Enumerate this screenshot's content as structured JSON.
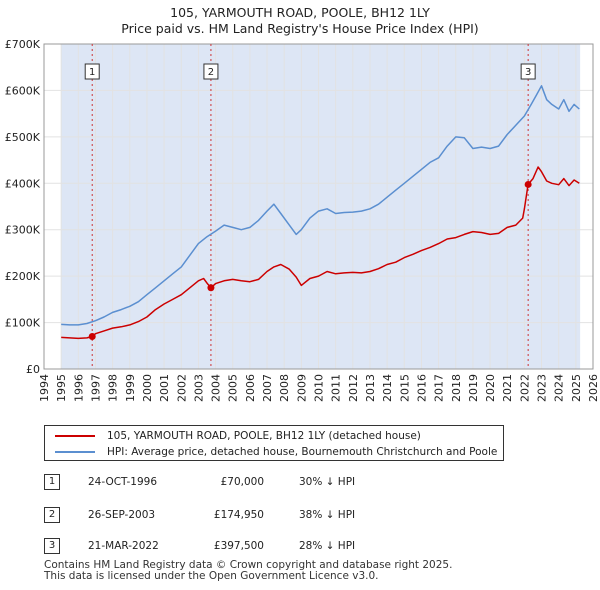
{
  "title_line1": "105, YARMOUTH ROAD, POOLE, BH12 1LY",
  "title_line2": "Price paid vs. HM Land Registry's House Price Index (HPI)",
  "chart_data": {
    "type": "line",
    "title": "105, YARMOUTH ROAD, POOLE, BH12 1LY — Price paid vs. HM Land Registry's House Price Index (HPI)",
    "xlim": [
      1994,
      2026
    ],
    "ylim": [
      0,
      700000
    ],
    "y_ticks": [
      0,
      100000,
      200000,
      300000,
      400000,
      500000,
      600000,
      700000
    ],
    "y_tick_labels": [
      "£0",
      "£100K",
      "£200K",
      "£300K",
      "£400K",
      "£500K",
      "£600K",
      "£700K"
    ],
    "x_ticks": [
      1994,
      1995,
      1996,
      1997,
      1998,
      1999,
      2000,
      2001,
      2002,
      2003,
      2004,
      2005,
      2006,
      2007,
      2008,
      2009,
      2010,
      2011,
      2012,
      2013,
      2014,
      2015,
      2016,
      2017,
      2018,
      2019,
      2020,
      2021,
      2022,
      2023,
      2024,
      2025,
      2026
    ],
    "data_range": [
      1995.0,
      2025.25
    ],
    "colors": {
      "price": "#cc0000",
      "hpi": "#5b8fd0",
      "shade": "#dde6f5",
      "grid": "#e2e2e2",
      "marker_line": "#cc3333"
    },
    "series": [
      {
        "name": "105, YARMOUTH ROAD, POOLE, BH12 1LY (detached house)",
        "color": "#cc0000",
        "x": [
          1995.0,
          1995.5,
          1996.0,
          1996.5,
          1996.81,
          1997.0,
          1997.5,
          1998.0,
          1998.5,
          1999.0,
          1999.5,
          2000.0,
          2000.5,
          2001.0,
          2001.5,
          2002.0,
          2002.5,
          2003.0,
          2003.3,
          2003.5,
          2003.73,
          2004.0,
          2004.5,
          2005.0,
          2005.5,
          2006.0,
          2006.5,
          2007.0,
          2007.4,
          2007.8,
          2008.3,
          2008.7,
          2009.0,
          2009.5,
          2010.0,
          2010.5,
          2011.0,
          2011.5,
          2012.0,
          2012.5,
          2013.0,
          2013.5,
          2014.0,
          2014.5,
          2015.0,
          2015.5,
          2016.0,
          2016.5,
          2017.0,
          2017.5,
          2018.0,
          2018.5,
          2019.0,
          2019.5,
          2020.0,
          2020.5,
          2021.0,
          2021.5,
          2021.9,
          2022.0,
          2022.22,
          2022.5,
          2022.8,
          2023.0,
          2023.3,
          2023.6,
          2024.0,
          2024.3,
          2024.6,
          2024.9,
          2025.2
        ],
        "values": [
          68000,
          67000,
          66000,
          67000,
          70000,
          76000,
          82000,
          88000,
          91000,
          95000,
          102000,
          112000,
          128000,
          140000,
          150000,
          160000,
          175000,
          190000,
          195000,
          185000,
          174950,
          184000,
          190000,
          193000,
          190000,
          188000,
          193000,
          210000,
          220000,
          225000,
          215000,
          198000,
          180000,
          195000,
          200000,
          210000,
          205000,
          207000,
          208000,
          207000,
          210000,
          216000,
          225000,
          230000,
          240000,
          247000,
          255000,
          262000,
          270000,
          280000,
          283000,
          290000,
          296000,
          294000,
          290000,
          292000,
          305000,
          310000,
          325000,
          345000,
          397500,
          410000,
          435000,
          425000,
          405000,
          400000,
          397000,
          410000,
          395000,
          407000,
          400000
        ]
      },
      {
        "name": "HPI: Average price, detached house, Bournemouth Christchurch and Poole",
        "color": "#5b8fd0",
        "x": [
          1995.0,
          1995.5,
          1996.0,
          1996.5,
          1997.0,
          1997.5,
          1998.0,
          1998.5,
          1999.0,
          1999.5,
          2000.0,
          2000.5,
          2001.0,
          2001.5,
          2002.0,
          2002.5,
          2003.0,
          2003.5,
          2004.0,
          2004.5,
          2005.0,
          2005.5,
          2006.0,
          2006.5,
          2007.0,
          2007.4,
          2007.8,
          2008.3,
          2008.7,
          2009.0,
          2009.5,
          2010.0,
          2010.5,
          2011.0,
          2011.5,
          2012.0,
          2012.5,
          2013.0,
          2013.5,
          2014.0,
          2014.5,
          2015.0,
          2015.5,
          2016.0,
          2016.5,
          2017.0,
          2017.5,
          2018.0,
          2018.5,
          2019.0,
          2019.5,
          2020.0,
          2020.5,
          2021.0,
          2021.5,
          2022.0,
          2022.4,
          2022.7,
          2023.0,
          2023.3,
          2023.6,
          2024.0,
          2024.3,
          2024.6,
          2024.9,
          2025.2
        ],
        "values": [
          96000,
          95000,
          95000,
          98000,
          104000,
          112000,
          122000,
          128000,
          135000,
          145000,
          160000,
          175000,
          190000,
          205000,
          220000,
          245000,
          270000,
          285000,
          297000,
          310000,
          305000,
          300000,
          305000,
          320000,
          340000,
          355000,
          335000,
          310000,
          290000,
          300000,
          325000,
          340000,
          345000,
          335000,
          337000,
          338000,
          340000,
          345000,
          355000,
          370000,
          385000,
          400000,
          415000,
          430000,
          445000,
          455000,
          480000,
          500000,
          498000,
          475000,
          478000,
          475000,
          480000,
          505000,
          525000,
          545000,
          570000,
          590000,
          610000,
          580000,
          570000,
          560000,
          580000,
          555000,
          570000,
          560000
        ]
      }
    ],
    "sales": [
      {
        "id": "1",
        "x": 1996.81,
        "value": 70000,
        "date": "24-OCT-1996",
        "price": "£70,000",
        "hpi_note": "30% ↓ HPI"
      },
      {
        "id": "2",
        "x": 2003.73,
        "value": 174950,
        "date": "26-SEP-2003",
        "price": "£174,950",
        "hpi_note": "38% ↓ HPI"
      },
      {
        "id": "3",
        "x": 2022.22,
        "value": 397500,
        "date": "21-MAR-2022",
        "price": "£397,500",
        "hpi_note": "28% ↓ HPI"
      }
    ]
  },
  "legend": {
    "price_label": "105, YARMOUTH ROAD, POOLE, BH12 1LY (detached house)",
    "hpi_label": "HPI: Average price, detached house, Bournemouth Christchurch and Poole"
  },
  "footer": {
    "line1": "Contains HM Land Registry data © Crown copyright and database right 2025.",
    "line2": "This data is licensed under the Open Government Licence v3.0."
  }
}
